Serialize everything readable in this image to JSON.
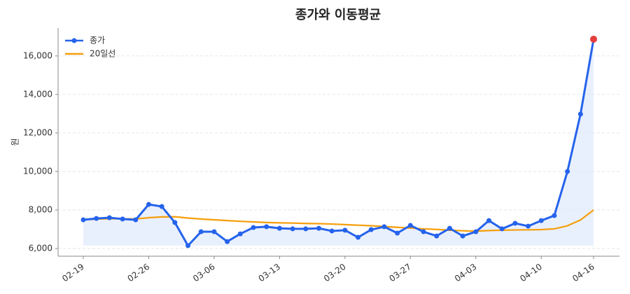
{
  "chart_data": {
    "type": "line",
    "title": "종가와 이동평균",
    "y_label": "원",
    "categories": [
      "02-19",
      null,
      null,
      null,
      null,
      "02-26",
      null,
      null,
      null,
      null,
      "03-06",
      null,
      null,
      null,
      null,
      "03-13",
      null,
      null,
      null,
      null,
      "03-20",
      null,
      null,
      null,
      null,
      "03-27",
      null,
      null,
      null,
      null,
      "04-03",
      null,
      null,
      null,
      null,
      "04-10",
      null,
      null,
      null,
      "04-16"
    ],
    "series": [
      {
        "name": "종가",
        "color": "#2563eb",
        "markers": true,
        "fill": "#dbe6fb",
        "last_point_color": "#e53e3e",
        "values": [
          7490,
          7560,
          7600,
          7530,
          7490,
          8290,
          8180,
          7350,
          6150,
          6870,
          6870,
          6360,
          6760,
          7090,
          7130,
          7050,
          7020,
          7020,
          7050,
          6910,
          6950,
          6580,
          6980,
          7130,
          6800,
          7200,
          6870,
          6650,
          7050,
          6650,
          6870,
          7450,
          7020,
          7310,
          7160,
          7450,
          7710,
          10000,
          12980,
          16870
        ]
      },
      {
        "name": "20일선",
        "color": "#f59e0b",
        "markers": false,
        "values": [
          7490,
          7525,
          7550,
          7545,
          7534,
          7600,
          7640,
          7650,
          7580,
          7530,
          7490,
          7450,
          7410,
          7380,
          7350,
          7330,
          7320,
          7300,
          7290,
          7270,
          7240,
          7210,
          7180,
          7140,
          7100,
          7060,
          7020,
          6990,
          6950,
          6920,
          6900,
          6930,
          6950,
          6960,
          6970,
          6980,
          7020,
          7180,
          7480,
          8000
        ]
      }
    ],
    "ylim": [
      5600,
      17450
    ],
    "yticks": [
      {
        "value": 6000,
        "label": "6,000"
      },
      {
        "value": 8000,
        "label": "8,000"
      },
      {
        "value": 10000,
        "label": "10,000"
      },
      {
        "value": 12000,
        "label": "12,000"
      },
      {
        "value": 14000,
        "label": "14,000"
      },
      {
        "value": 16000,
        "label": "16,000"
      }
    ],
    "grid": true,
    "legend": "upper left"
  }
}
